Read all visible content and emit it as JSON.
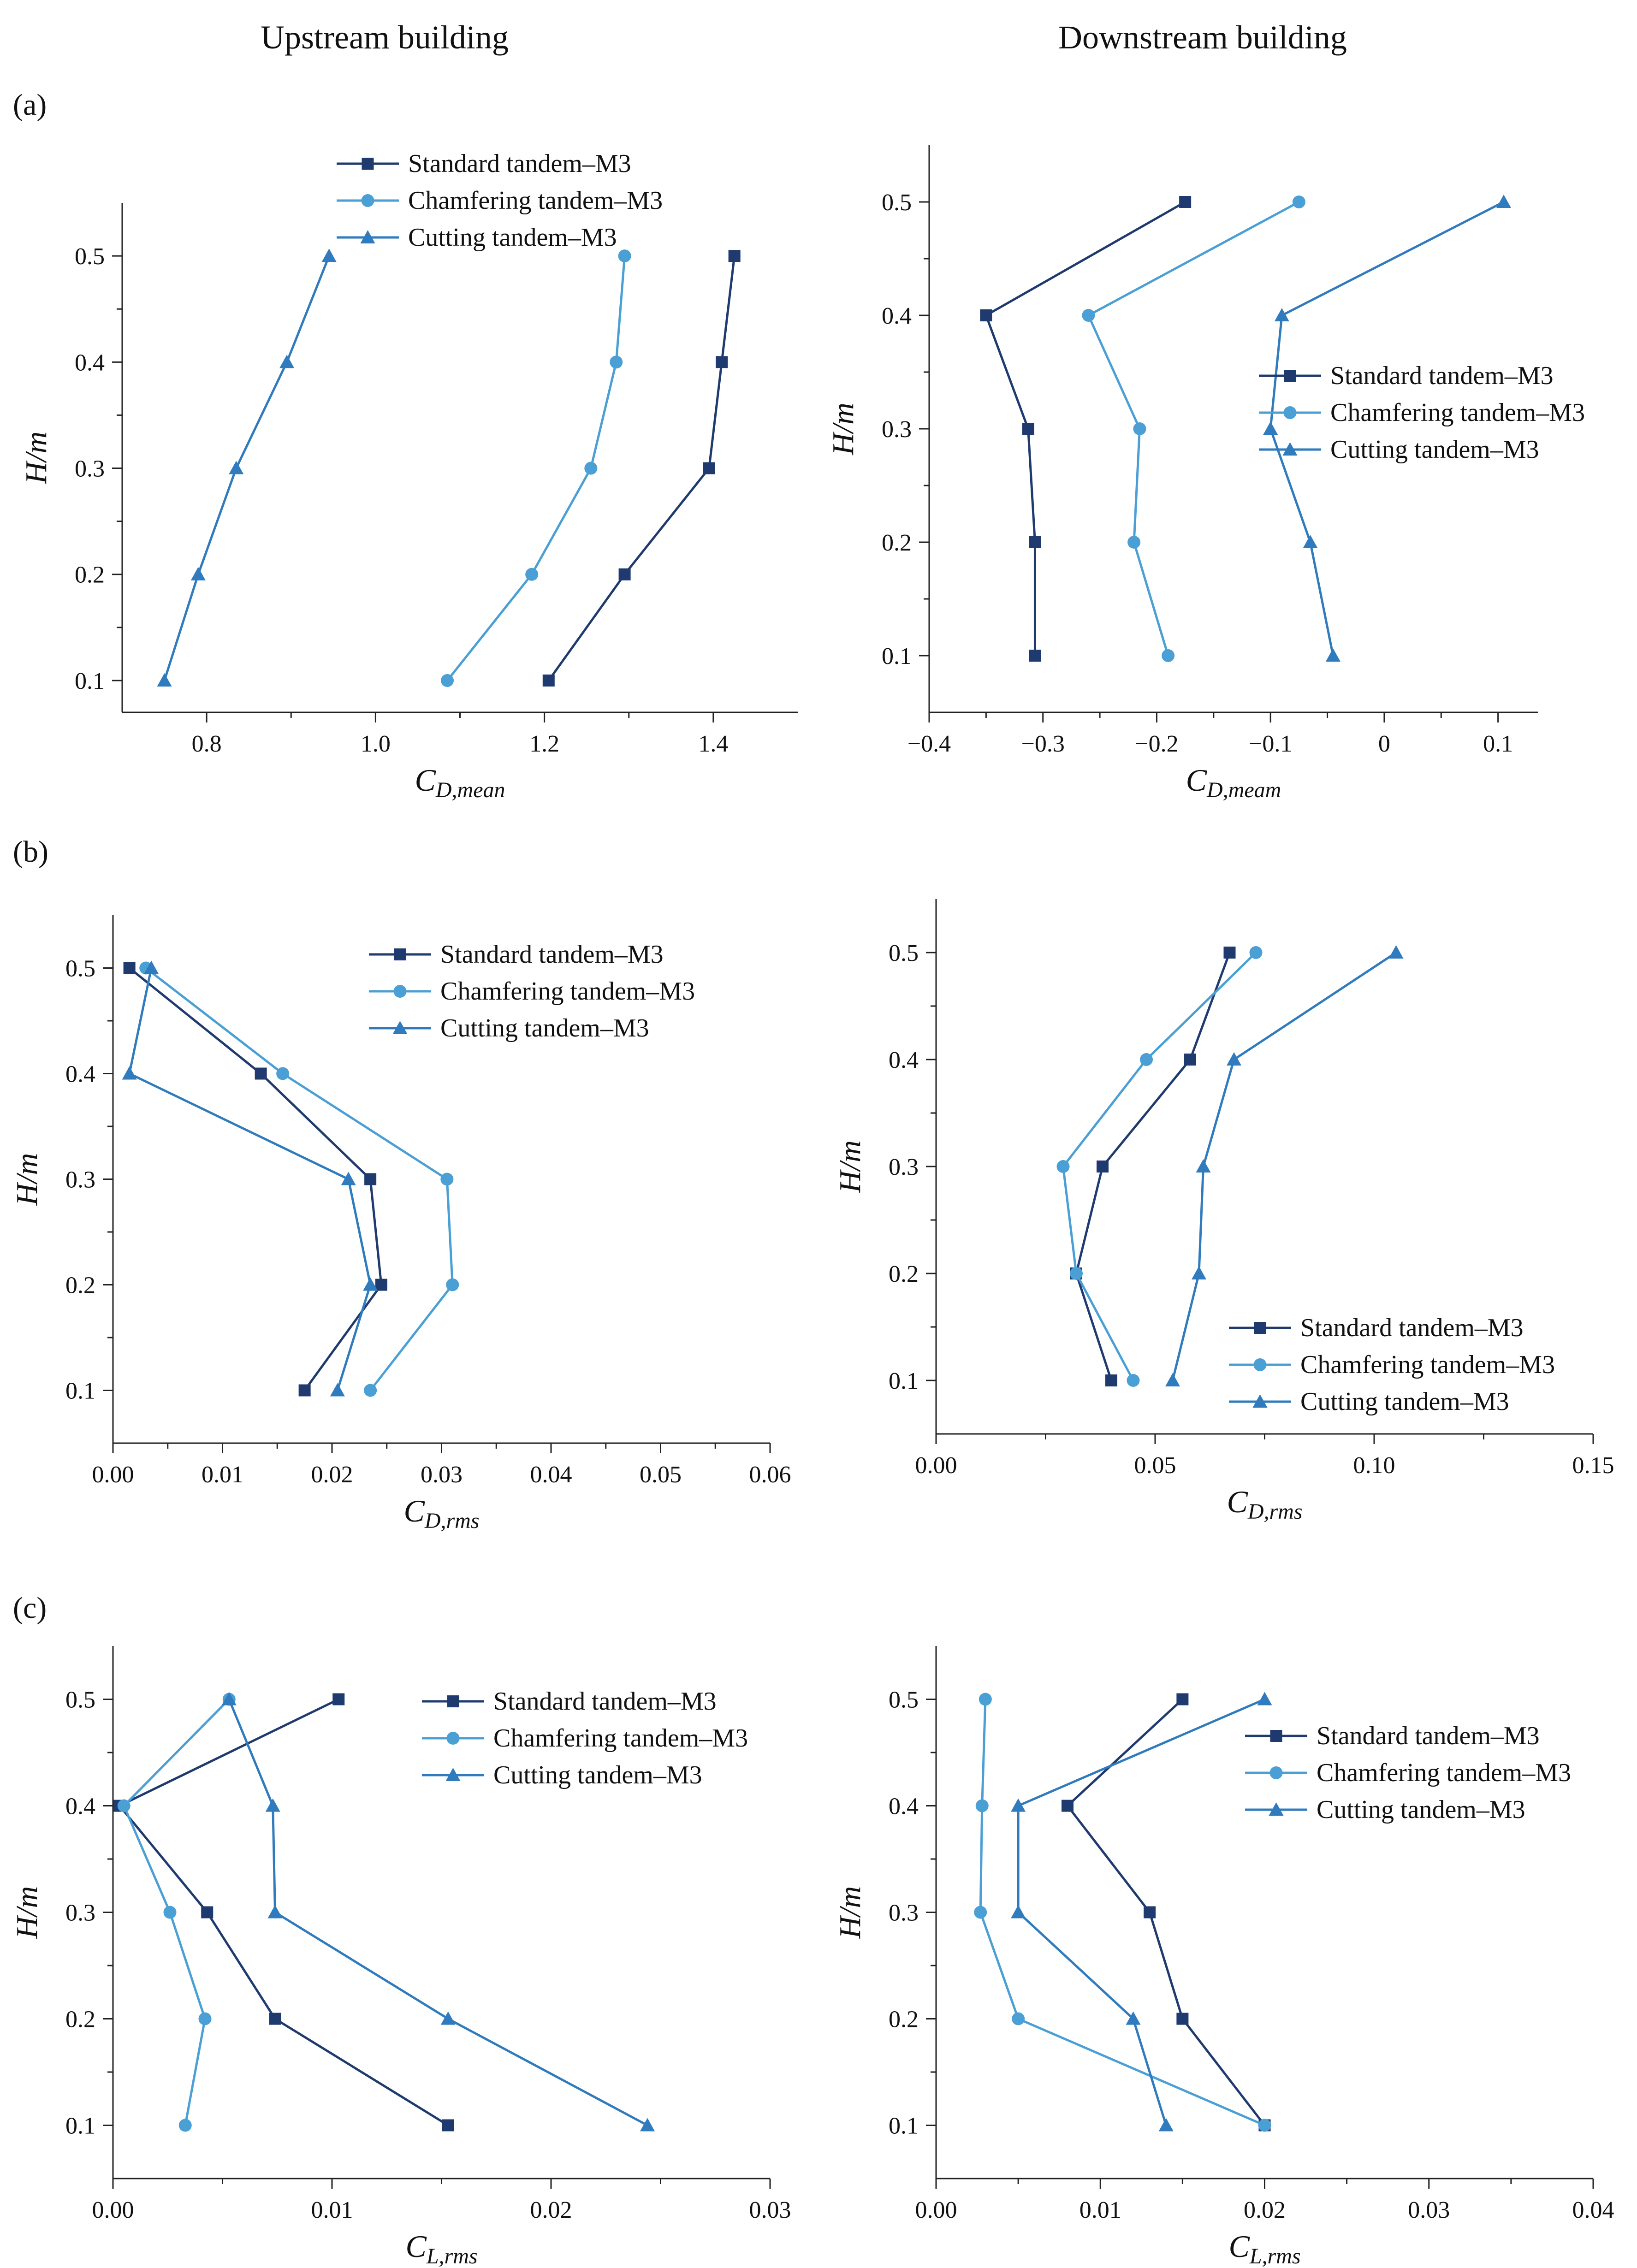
{
  "figure": {
    "column_titles": [
      "Upstream building",
      "Downstream building"
    ],
    "panel_labels": [
      "(a)",
      "(b)",
      "(c)"
    ]
  },
  "colors": {
    "standard": "#1f3a6e",
    "chamfering": "#4a9fd4",
    "cutting": "#2f7bbd",
    "axis": "#222222"
  },
  "chart_data": [
    {
      "type": "line",
      "panel": "(a)",
      "column": "Upstream building",
      "xlabel_main": "C",
      "xlabel_sub": "D,mean",
      "ylabel": "H/m",
      "xlim": [
        0.7,
        1.5
      ],
      "xticks": [
        0.8,
        1.0,
        1.2,
        1.4
      ],
      "xtick_labels": [
        "0.8",
        "1.0",
        "1.2",
        "1.4"
      ],
      "ylim": [
        0.07,
        0.55
      ],
      "yticks": [
        0.1,
        0.2,
        0.3,
        0.4,
        0.5
      ],
      "ytick_labels": [
        "0.1",
        "0.2",
        "0.3",
        "0.4",
        "0.5"
      ],
      "legend_position": "top-center",
      "series": [
        {
          "name": "Standard tandem–M3",
          "marker": "square",
          "color_key": "standard",
          "x": [
            1.205,
            1.295,
            1.395,
            1.41,
            1.425
          ],
          "y": [
            0.1,
            0.2,
            0.3,
            0.4,
            0.5
          ]
        },
        {
          "name": "Chamfering tandem–M3",
          "marker": "circle",
          "color_key": "chamfering",
          "x": [
            1.085,
            1.185,
            1.255,
            1.285,
            1.295
          ],
          "y": [
            0.1,
            0.2,
            0.3,
            0.4,
            0.5
          ]
        },
        {
          "name": "Cutting tandem–M3",
          "marker": "triangle",
          "color_key": "cutting",
          "x": [
            0.75,
            0.79,
            0.835,
            0.895,
            0.945
          ],
          "y": [
            0.1,
            0.2,
            0.3,
            0.4,
            0.5
          ]
        }
      ]
    },
    {
      "type": "line",
      "panel": "(a)",
      "column": "Downstream building",
      "xlabel_main": "C",
      "xlabel_sub": "D,meam",
      "ylabel": "H/m",
      "xlim": [
        -0.4,
        0.135
      ],
      "xticks": [
        -0.4,
        -0.3,
        -0.2,
        -0.1,
        0,
        0.1
      ],
      "xtick_labels": [
        "−0.4",
        "−0.3",
        "−0.2",
        "−0.1",
        "0",
        "0.1"
      ],
      "ylim": [
        0.05,
        0.55
      ],
      "yticks": [
        0.1,
        0.2,
        0.3,
        0.4,
        0.5
      ],
      "ytick_labels": [
        "0.1",
        "0.2",
        "0.3",
        "0.4",
        "0.5"
      ],
      "legend_position": "middle-right",
      "series": [
        {
          "name": "Standard tandem–M3",
          "marker": "square",
          "color_key": "standard",
          "x": [
            -0.307,
            -0.307,
            -0.313,
            -0.35,
            -0.175
          ],
          "y": [
            0.1,
            0.2,
            0.3,
            0.4,
            0.5
          ]
        },
        {
          "name": "Chamfering tandem–M3",
          "marker": "circle",
          "color_key": "chamfering",
          "x": [
            -0.19,
            -0.22,
            -0.215,
            -0.26,
            -0.075
          ],
          "y": [
            0.1,
            0.2,
            0.3,
            0.4,
            0.5
          ]
        },
        {
          "name": "Cutting tandem–M3",
          "marker": "triangle",
          "color_key": "cutting",
          "x": [
            -0.045,
            -0.065,
            -0.1,
            -0.09,
            0.105
          ],
          "y": [
            0.1,
            0.2,
            0.3,
            0.4,
            0.5
          ]
        }
      ]
    },
    {
      "type": "line",
      "panel": "(b)",
      "column": "Upstream building",
      "xlabel_main": "C",
      "xlabel_sub": "D,rms",
      "ylabel": "H/m",
      "xlim": [
        0,
        0.06
      ],
      "xticks": [
        0,
        0.01,
        0.02,
        0.03,
        0.04,
        0.05,
        0.06
      ],
      "xtick_labels": [
        "0.00",
        "0.01",
        "0.02",
        "0.03",
        "0.04",
        "0.05",
        "0.06"
      ],
      "ylim": [
        0.05,
        0.55
      ],
      "yticks": [
        0.1,
        0.2,
        0.3,
        0.4,
        0.5
      ],
      "ytick_labels": [
        "0.1",
        "0.2",
        "0.3",
        "0.4",
        "0.5"
      ],
      "legend_position": "top-right",
      "series": [
        {
          "name": "Standard tandem–M3",
          "marker": "square",
          "color_key": "standard",
          "x": [
            0.0175,
            0.0245,
            0.0235,
            0.0135,
            0.0015
          ],
          "y": [
            0.1,
            0.2,
            0.3,
            0.4,
            0.5
          ]
        },
        {
          "name": "Chamfering tandem–M3",
          "marker": "circle",
          "color_key": "chamfering",
          "x": [
            0.0235,
            0.031,
            0.0305,
            0.0155,
            0.003
          ],
          "y": [
            0.1,
            0.2,
            0.3,
            0.4,
            0.5
          ]
        },
        {
          "name": "Cutting tandem–M3",
          "marker": "triangle",
          "color_key": "cutting",
          "x": [
            0.0205,
            0.0235,
            0.0215,
            0.0015,
            0.0035
          ],
          "y": [
            0.1,
            0.2,
            0.3,
            0.4,
            0.5
          ]
        }
      ]
    },
    {
      "type": "line",
      "panel": "(b)",
      "column": "Downstream building",
      "xlabel_main": "C",
      "xlabel_sub": "D,rms",
      "ylabel": "H/m",
      "xlim": [
        0,
        0.15
      ],
      "xticks": [
        0,
        0.05,
        0.1,
        0.15
      ],
      "xtick_labels": [
        "0.00",
        "0.05",
        "0.10",
        "0.15"
      ],
      "ylim": [
        0.05,
        0.55
      ],
      "yticks": [
        0.1,
        0.2,
        0.3,
        0.4,
        0.5
      ],
      "ytick_labels": [
        "0.1",
        "0.2",
        "0.3",
        "0.4",
        "0.5"
      ],
      "legend_position": "bottom-right",
      "series": [
        {
          "name": "Standard tandem–M3",
          "marker": "square",
          "color_key": "standard",
          "x": [
            0.04,
            0.032,
            0.038,
            0.058,
            0.067
          ],
          "y": [
            0.1,
            0.2,
            0.3,
            0.4,
            0.5
          ]
        },
        {
          "name": "Chamfering tandem–M3",
          "marker": "circle",
          "color_key": "chamfering",
          "x": [
            0.045,
            0.032,
            0.029,
            0.048,
            0.073
          ],
          "y": [
            0.1,
            0.2,
            0.3,
            0.4,
            0.5
          ]
        },
        {
          "name": "Cutting tandem–M3",
          "marker": "triangle",
          "color_key": "cutting",
          "x": [
            0.054,
            0.06,
            0.061,
            0.068,
            0.105
          ],
          "y": [
            0.1,
            0.2,
            0.3,
            0.4,
            0.5
          ]
        }
      ]
    },
    {
      "type": "line",
      "panel": "(c)",
      "column": "Upstream building",
      "xlabel_main": "C",
      "xlabel_sub": "L,rms",
      "ylabel": "H/m",
      "xlim": [
        0,
        0.03
      ],
      "xticks": [
        0,
        0.01,
        0.02,
        0.03
      ],
      "xtick_labels": [
        "0.00",
        "0.01",
        "0.02",
        "0.03"
      ],
      "ylim": [
        0.05,
        0.55
      ],
      "yticks": [
        0.1,
        0.2,
        0.3,
        0.4,
        0.5
      ],
      "ytick_labels": [
        "0.1",
        "0.2",
        "0.3",
        "0.4",
        "0.5"
      ],
      "legend_position": "top-right",
      "series": [
        {
          "name": "Standard tandem–M3",
          "marker": "square",
          "color_key": "standard",
          "x": [
            0.0153,
            0.0074,
            0.0043,
            0.0003,
            0.0103
          ],
          "y": [
            0.1,
            0.2,
            0.3,
            0.4,
            0.5
          ]
        },
        {
          "name": "Chamfering tandem–M3",
          "marker": "circle",
          "color_key": "chamfering",
          "x": [
            0.0033,
            0.0042,
            0.0026,
            0.0005,
            0.0053
          ],
          "y": [
            0.1,
            0.2,
            0.3,
            0.4,
            0.5
          ]
        },
        {
          "name": "Cutting tandem–M3",
          "marker": "triangle",
          "color_key": "cutting",
          "x": [
            0.0244,
            0.0153,
            0.0074,
            0.0073,
            0.0053
          ],
          "y": [
            0.1,
            0.2,
            0.3,
            0.4,
            0.5
          ]
        }
      ]
    },
    {
      "type": "line",
      "panel": "(c)",
      "column": "Downstream building",
      "xlabel_main": "C",
      "xlabel_sub": "L,rms",
      "ylabel": "H/m",
      "xlim": [
        0,
        0.04
      ],
      "xticks": [
        0,
        0.01,
        0.02,
        0.03,
        0.04
      ],
      "xtick_labels": [
        "0.00",
        "0.01",
        "0.02",
        "0.03",
        "0.04"
      ],
      "ylim": [
        0.05,
        0.55
      ],
      "yticks": [
        0.1,
        0.2,
        0.3,
        0.4,
        0.5
      ],
      "ytick_labels": [
        "0.1",
        "0.2",
        "0.3",
        "0.4",
        "0.5"
      ],
      "legend_position": "top-right",
      "series": [
        {
          "name": "Standard tandem–M3",
          "marker": "square",
          "color_key": "standard",
          "x": [
            0.02,
            0.015,
            0.013,
            0.008,
            0.015
          ],
          "y": [
            0.1,
            0.2,
            0.3,
            0.4,
            0.5
          ]
        },
        {
          "name": "Chamfering tandem–M3",
          "marker": "circle",
          "color_key": "chamfering",
          "x": [
            0.02,
            0.005,
            0.0027,
            0.0028,
            0.003
          ],
          "y": [
            0.1,
            0.2,
            0.3,
            0.4,
            0.5
          ]
        },
        {
          "name": "Cutting tandem–M3",
          "marker": "triangle",
          "color_key": "cutting",
          "x": [
            0.014,
            0.012,
            0.005,
            0.005,
            0.02
          ],
          "y": [
            0.1,
            0.2,
            0.3,
            0.4,
            0.5
          ]
        }
      ]
    }
  ]
}
